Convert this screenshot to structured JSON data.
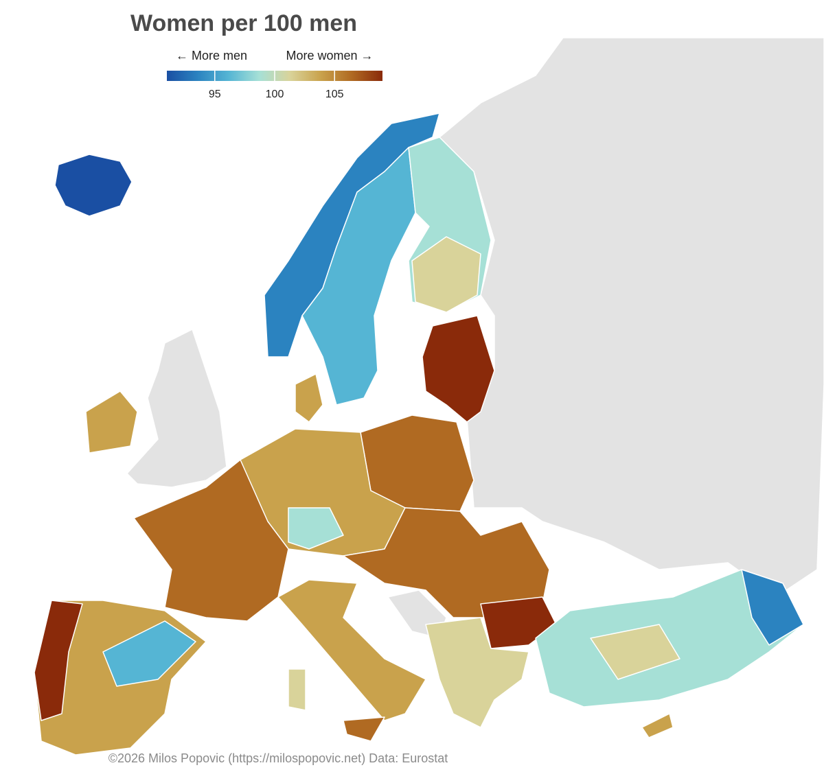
{
  "title": "Women per 100 men",
  "legend": {
    "left_label": "← More men",
    "right_label": "More women →",
    "range": [
      91,
      109
    ],
    "ticks": [
      95,
      100,
      105
    ],
    "colors": [
      "#1a4fa3",
      "#2b83c0",
      "#55b5d4",
      "#a6e0d6",
      "#d9d39a",
      "#c9a24c",
      "#b06a22",
      "#8a2a0a"
    ]
  },
  "credit": "©2026 Milos Popovic (https://milospopovic.net) Data: Eurostat"
}
